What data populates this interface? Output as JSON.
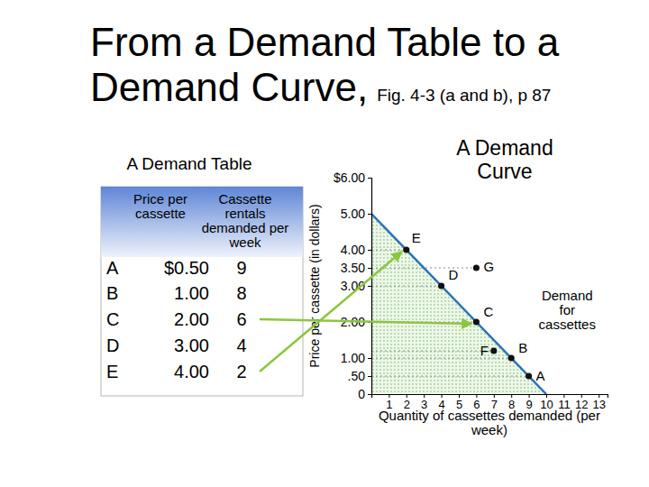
{
  "page": {
    "title": "From a Demand Table to a Demand Curve,",
    "figure_ref": "Fig. 4-3 (a and b), p 87"
  },
  "table": {
    "title": "A Demand Table",
    "columns": [
      "Price per cassette",
      "Cassette rentals demanded per week"
    ],
    "rows": [
      [
        "A",
        "$0.50",
        9
      ],
      [
        "B",
        "1.00",
        8
      ],
      [
        "C",
        "2.00",
        6
      ],
      [
        "D",
        "3.00",
        4
      ],
      [
        "E",
        "4.00",
        2
      ]
    ]
  },
  "chart_data": {
    "type": "line",
    "title": "A Demand Curve",
    "x_label": "Quantity of cassettes demanded (per week)",
    "y_label": "Price per cassette (in dollars)",
    "xlim": [
      0,
      13.5
    ],
    "xticks": [
      1,
      2,
      3,
      4,
      5,
      6,
      7,
      8,
      9,
      10,
      11,
      12,
      13
    ],
    "ylim": [
      0,
      6
    ],
    "yticks": [
      0,
      {
        "value": 0.5,
        "label": ".50"
      },
      {
        "value": 1,
        "label": "1.00"
      },
      {
        "value": 2,
        "label": "2.00"
      },
      {
        "value": 3,
        "label": "3.00"
      },
      {
        "value": 3.5,
        "label": "3.50"
      },
      {
        "value": 4,
        "label": "4.00"
      },
      {
        "value": 5,
        "label": "5.00"
      },
      {
        "value": 6,
        "label": "$6.00"
      }
    ],
    "series": [
      {
        "name": "Demand for cassettes",
        "type": "line",
        "color": "#2a72b8",
        "x": [
          0,
          10
        ],
        "values": [
          5,
          0
        ]
      },
      {
        "type": "scatter",
        "color": "#111111",
        "marker": "circle",
        "labels": [
          "A",
          "B",
          "C",
          "D",
          "E",
          "F",
          "G"
        ],
        "x": [
          9,
          8,
          6,
          4,
          2,
          7,
          6
        ],
        "values": [
          0.5,
          1,
          2,
          3,
          4,
          1.2,
          3.5
        ]
      }
    ]
  }
}
